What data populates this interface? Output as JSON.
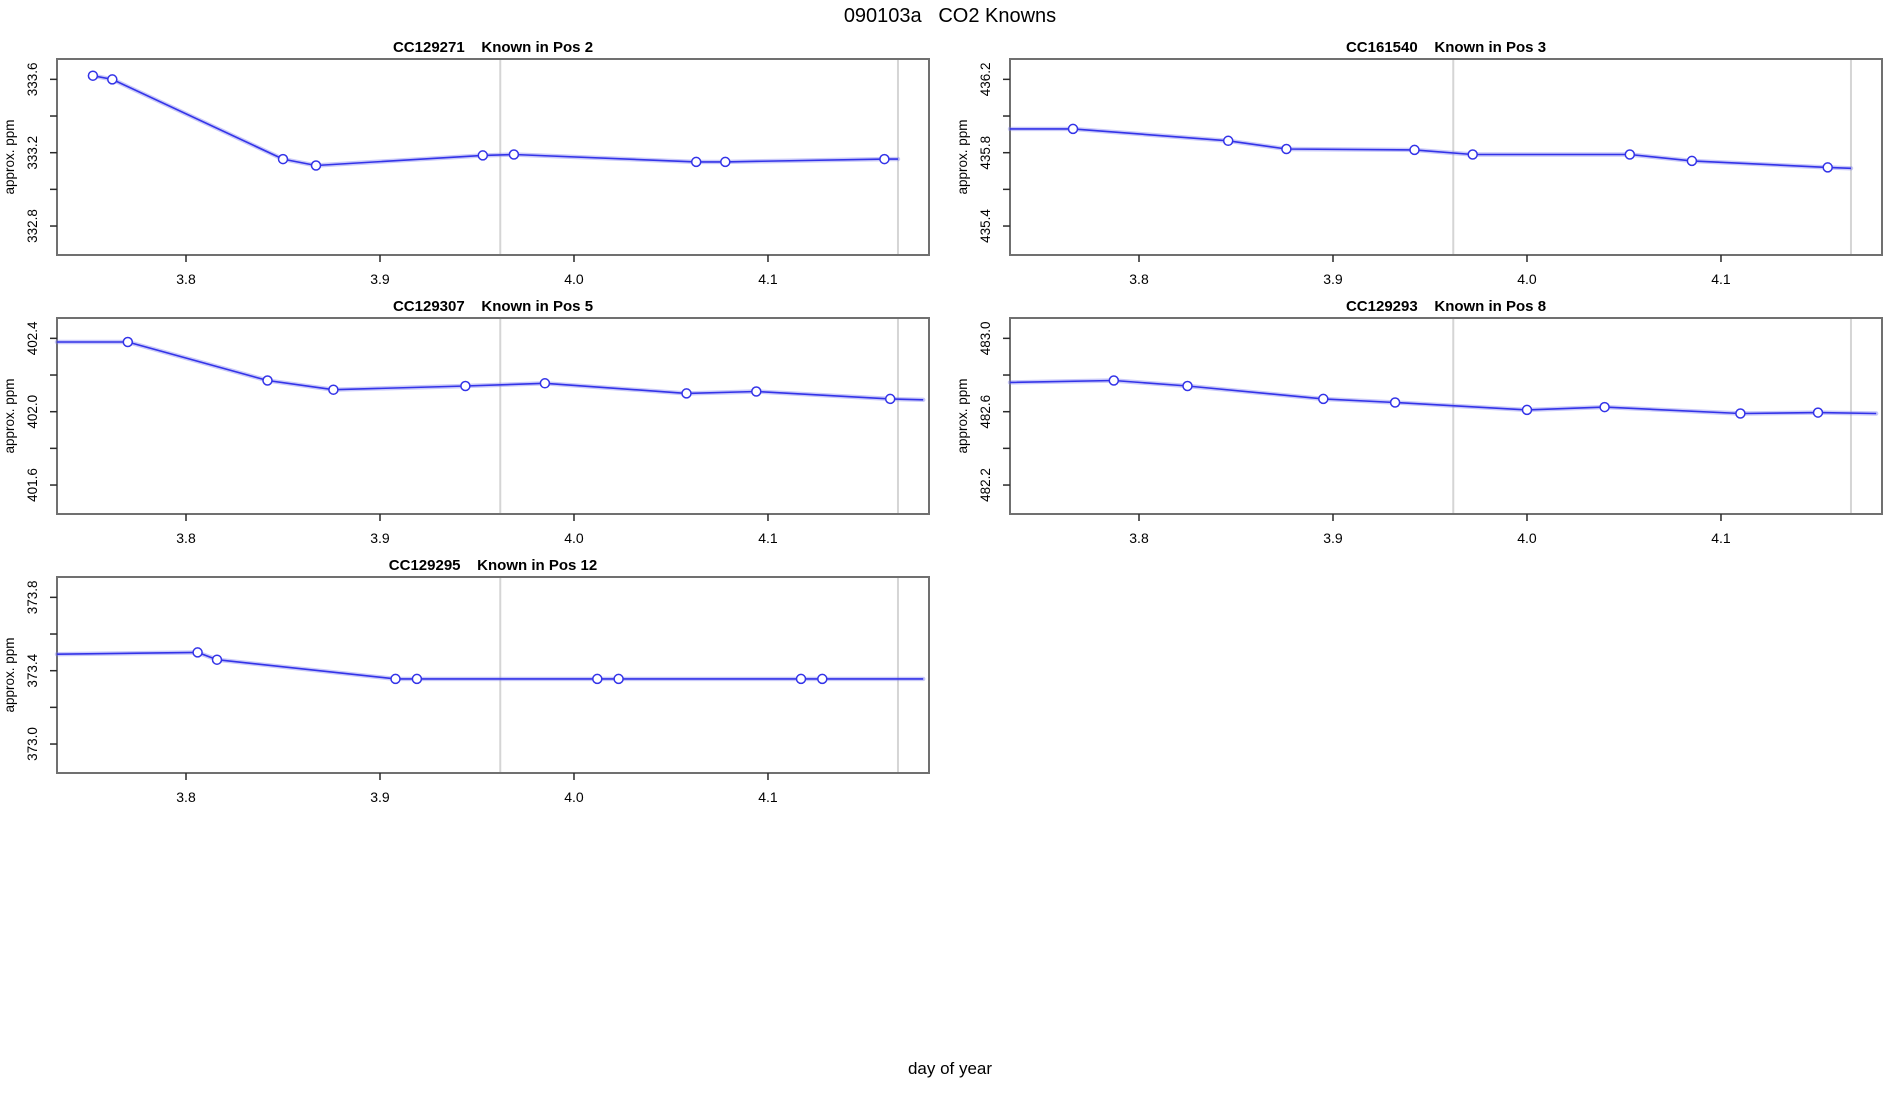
{
  "page": {
    "title": "090103a   CO2 Knowns",
    "shared_x_label": "day of year"
  },
  "style": {
    "line_color": "#3333e8",
    "halo_color": "rgba(120,120,240,0.40)",
    "marker_fill": "#ffffff",
    "guide_color": "#d5d5d5",
    "box_color": "#707070",
    "tick_color": "#2a2a2a",
    "text_color": "#000000",
    "background": "#ffffff"
  },
  "axis_shared": {
    "xlabel": "day of year",
    "xlim": [
      3.7335,
      4.183
    ],
    "x_ticks": [
      3.8,
      3.9,
      4.0,
      4.1
    ],
    "x_tick_labels": [
      "3.8",
      "3.9",
      "4.0",
      "4.1"
    ],
    "guide_lines_x": [
      3.962,
      4.167
    ],
    "grid": "off",
    "legend": "none"
  },
  "chart_data": [
    {
      "type": "line",
      "title_serial": "CC129271",
      "title_pos": "Known in Pos 2",
      "ylabel": "approx. ppm",
      "ylim": [
        332.642,
        333.711
      ],
      "y_ticks": [
        332.8,
        333.0,
        333.2,
        333.4,
        333.6
      ],
      "y_tick_labels": [
        "332.8",
        "",
        "333.2",
        "",
        "333.6"
      ],
      "x": [
        3.752,
        3.762,
        3.85,
        3.867,
        3.953,
        3.969,
        4.063,
        4.078,
        4.16
      ],
      "y": [
        333.62,
        333.6,
        333.165,
        333.13,
        333.185,
        333.19,
        333.15,
        333.15,
        333.165
      ],
      "line_start": null,
      "line_end": [
        4.167,
        333.165
      ],
      "grid_pos": [
        0,
        0
      ]
    },
    {
      "type": "line",
      "title_serial": "CC161540",
      "title_pos": "Known in Pos 3",
      "ylabel": "approx. ppm",
      "ylim": [
        435.242,
        436.311
      ],
      "y_ticks": [
        435.4,
        435.6,
        435.8,
        436.0,
        436.2
      ],
      "y_tick_labels": [
        "435.4",
        "",
        "435.8",
        "",
        "436.2"
      ],
      "x": [
        3.766,
        3.846,
        3.876,
        3.942,
        3.972,
        4.053,
        4.085,
        4.155
      ],
      "y": [
        435.93,
        435.865,
        435.82,
        435.815,
        435.79,
        435.79,
        435.755,
        435.72
      ],
      "line_start": [
        3.7335,
        435.93
      ],
      "line_end": [
        4.167,
        435.715
      ],
      "grid_pos": [
        1,
        0
      ]
    },
    {
      "type": "line",
      "title_serial": "CC129307",
      "title_pos": "Known in Pos 5",
      "ylabel": "approx. ppm",
      "ylim": [
        401.442,
        402.511
      ],
      "y_ticks": [
        401.6,
        401.8,
        402.0,
        402.2,
        402.4
      ],
      "y_tick_labels": [
        "401.6",
        "",
        "402.0",
        "",
        "402.4"
      ],
      "x": [
        3.77,
        3.842,
        3.876,
        3.944,
        3.985,
        4.058,
        4.094,
        4.163
      ],
      "y": [
        402.38,
        402.17,
        402.12,
        402.14,
        402.155,
        402.1,
        402.11,
        402.07
      ],
      "line_start": [
        3.7335,
        402.38
      ],
      "line_end": [
        4.18,
        402.065
      ],
      "grid_pos": [
        0,
        1
      ]
    },
    {
      "type": "line",
      "title_serial": "CC129293",
      "title_pos": "Known in Pos 8",
      "ylabel": "approx. ppm",
      "ylim": [
        482.042,
        483.111
      ],
      "y_ticks": [
        482.2,
        482.4,
        482.6,
        482.8,
        483.0
      ],
      "y_tick_labels": [
        "482.2",
        "",
        "482.6",
        "",
        "483.0"
      ],
      "x": [
        3.787,
        3.825,
        3.895,
        3.932,
        4.0,
        4.04,
        4.11,
        4.15
      ],
      "y": [
        482.77,
        482.74,
        482.67,
        482.65,
        482.61,
        482.625,
        482.59,
        482.595
      ],
      "line_start": [
        3.7335,
        482.76
      ],
      "line_end": [
        4.18,
        482.59
      ],
      "grid_pos": [
        1,
        1
      ]
    },
    {
      "type": "line",
      "title_serial": "CC129295",
      "title_pos": "Known in Pos 12",
      "ylabel": "approx. ppm",
      "ylim": [
        372.842,
        373.911
      ],
      "y_ticks": [
        373.0,
        373.2,
        373.4,
        373.6,
        373.8
      ],
      "y_tick_labels": [
        "373.0",
        "",
        "373.4",
        "",
        "373.8"
      ],
      "x": [
        3.806,
        3.816,
        3.908,
        3.919,
        4.012,
        4.023,
        4.117,
        4.128
      ],
      "y": [
        373.5,
        373.46,
        373.355,
        373.355,
        373.355,
        373.355,
        373.355,
        373.355
      ],
      "line_start": [
        3.7335,
        373.49
      ],
      "line_end": [
        4.18,
        373.355
      ],
      "grid_pos": [
        0,
        2
      ]
    }
  ]
}
